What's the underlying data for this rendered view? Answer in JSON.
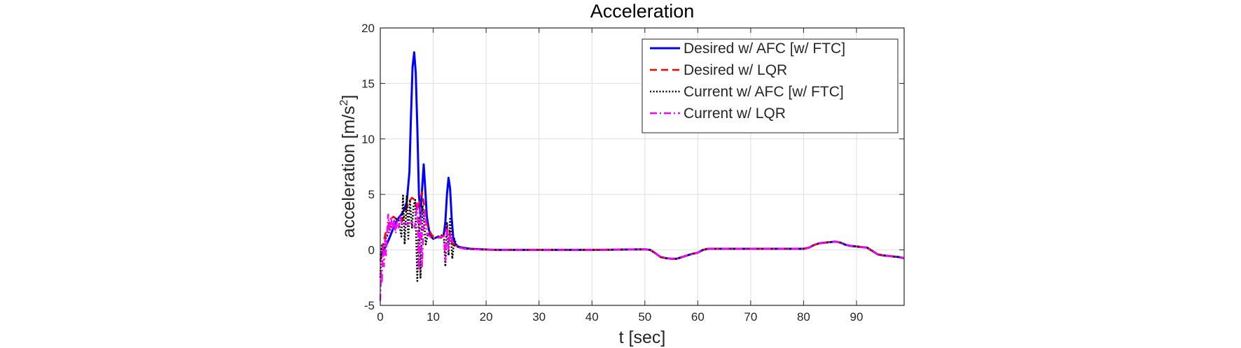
{
  "chart_data": {
    "type": "line",
    "title": "Acceleration",
    "xlabel": "t [sec]",
    "ylabel": {
      "text": "acceleration [m/s",
      "sup": "2",
      "tail": "]"
    },
    "xlim": [
      0,
      99
    ],
    "ylim": [
      -5,
      20
    ],
    "xticks": [
      0,
      10,
      20,
      30,
      40,
      50,
      60,
      70,
      80,
      90
    ],
    "yticks": [
      -5,
      0,
      5,
      10,
      15,
      20
    ],
    "grid": true,
    "legend_position": "top-right",
    "series": [
      {
        "name": "Desired w/ AFC [w/ FTC]",
        "color": "#0000ff",
        "style": "solid",
        "x": [
          0,
          0.5,
          1,
          1.5,
          2,
          2.5,
          3,
          3.5,
          4,
          4.5,
          5,
          5.5,
          5.8,
          6.1,
          6.4,
          6.7,
          7.0,
          7.3,
          7.6,
          7.9,
          8.2,
          8.5,
          8.8,
          9.2,
          9.6,
          10.0,
          10.5,
          11.0,
          11.5,
          12.0,
          12.3,
          12.6,
          12.9,
          13.2,
          13.5,
          13.8,
          14.2,
          14.7,
          15.5,
          17,
          19,
          22,
          30,
          40,
          50,
          51,
          52,
          53,
          54,
          55,
          56,
          57,
          58,
          59,
          60,
          61,
          62,
          63,
          65,
          70,
          75,
          80,
          81,
          82,
          83,
          84,
          85,
          86,
          87,
          88,
          89,
          90,
          91,
          92,
          93,
          94,
          95,
          96,
          97,
          98,
          99
        ],
        "y": [
          -0.5,
          -0.2,
          0.3,
          0.8,
          1.4,
          2.0,
          2.5,
          2.9,
          3.2,
          3.6,
          4.3,
          7.0,
          12.0,
          16.5,
          17.8,
          16.0,
          11.0,
          5.0,
          3.0,
          5.5,
          7.7,
          5.5,
          3.0,
          1.8,
          1.2,
          1.0,
          1.1,
          1.2,
          1.1,
          1.4,
          2.5,
          5.0,
          6.5,
          5.5,
          2.8,
          1.0,
          0.5,
          0.3,
          0.2,
          0.1,
          0.05,
          0.0,
          0.0,
          0.0,
          0.05,
          0.0,
          -0.3,
          -0.65,
          -0.75,
          -0.8,
          -0.8,
          -0.65,
          -0.5,
          -0.35,
          -0.25,
          0.0,
          0.1,
          0.1,
          0.1,
          0.1,
          0.1,
          0.1,
          0.2,
          0.45,
          0.6,
          0.65,
          0.7,
          0.75,
          0.65,
          0.45,
          0.35,
          0.3,
          0.25,
          0.2,
          -0.1,
          -0.4,
          -0.5,
          -0.55,
          -0.6,
          -0.65,
          -0.75
        ]
      },
      {
        "name": "Desired w/ LQR",
        "color": "#ff0000",
        "style": "dashed",
        "x": [
          0,
          0.5,
          1,
          1.5,
          2,
          2.5,
          3,
          3.5,
          4,
          4.5,
          5,
          5.5,
          6,
          6.5,
          7,
          7.5,
          7.9,
          8.3,
          8.7,
          9.2,
          9.8,
          10.5,
          11.5,
          12.3,
          12.7,
          13.0,
          13.3,
          13.7,
          14.2,
          15,
          16,
          18,
          22,
          30,
          40,
          50,
          51,
          52,
          53,
          54,
          55,
          56,
          57,
          58,
          59,
          60,
          61,
          62,
          63,
          65,
          70,
          75,
          80,
          81,
          82,
          83,
          84,
          85,
          86,
          87,
          88,
          89,
          90,
          91,
          92,
          93,
          94,
          95,
          96,
          97,
          98,
          99
        ],
        "y": [
          -1.0,
          0.5,
          1.5,
          2.2,
          2.8,
          3.0,
          2.8,
          2.6,
          2.6,
          3.0,
          3.8,
          4.4,
          4.7,
          4.5,
          3.5,
          4.5,
          5.2,
          4.0,
          2.5,
          1.8,
          1.3,
          1.1,
          1.1,
          1.5,
          2.2,
          2.0,
          1.0,
          0.5,
          0.3,
          0.2,
          0.1,
          0.05,
          0.0,
          0.0,
          0.0,
          0.05,
          0.0,
          -0.3,
          -0.65,
          -0.75,
          -0.8,
          -0.8,
          -0.65,
          -0.5,
          -0.35,
          -0.25,
          0.0,
          0.1,
          0.1,
          0.1,
          0.1,
          0.1,
          0.1,
          0.2,
          0.45,
          0.6,
          0.65,
          0.7,
          0.75,
          0.65,
          0.45,
          0.35,
          0.3,
          0.25,
          0.2,
          -0.1,
          -0.4,
          -0.5,
          -0.55,
          -0.6,
          -0.65,
          -0.75
        ]
      },
      {
        "name": "Current w/ AFC [w/ FTC]",
        "color": "#000000",
        "style": "dotted",
        "x": [
          0,
          0.3,
          0.6,
          1.0,
          1.5,
          2,
          2.5,
          3,
          3.5,
          4,
          4.3,
          4.6,
          5.0,
          5.3,
          5.6,
          6.0,
          6.3,
          6.6,
          7.0,
          7.3,
          7.6,
          8.0,
          8.3,
          8.6,
          9.0,
          9.5,
          10,
          10.5,
          11,
          11.5,
          12,
          12.3,
          12.6,
          12.9,
          13.2,
          13.6,
          14.0,
          14.5,
          15,
          16,
          18,
          22,
          30,
          40,
          50,
          51,
          52,
          53,
          54,
          55,
          56,
          57,
          58,
          59,
          60,
          61,
          62,
          63,
          65,
          70,
          75,
          80,
          81,
          82,
          83,
          84,
          85,
          86,
          87,
          88,
          89,
          90,
          91,
          92,
          93,
          94,
          95,
          96,
          97,
          98,
          99
        ],
        "y": [
          -2.5,
          0.5,
          0.0,
          1.0,
          1.5,
          2.0,
          2.5,
          2.8,
          2.6,
          1.2,
          4.9,
          0.5,
          4.9,
          1.0,
          4.5,
          2.0,
          4.0,
          4.5,
          -2.8,
          3.0,
          -2.5,
          4.0,
          2.5,
          0.5,
          1.5,
          1.2,
          1.0,
          1.1,
          1.2,
          1.3,
          1.5,
          -1.5,
          2.5,
          -0.5,
          2.8,
          -0.8,
          1.0,
          0.3,
          0.2,
          0.1,
          0.05,
          0.0,
          0.0,
          0.0,
          0.05,
          0.0,
          -0.3,
          -0.65,
          -0.75,
          -0.8,
          -0.8,
          -0.65,
          -0.5,
          -0.35,
          -0.25,
          0.0,
          0.1,
          0.1,
          0.1,
          0.1,
          0.1,
          0.1,
          0.2,
          0.45,
          0.6,
          0.65,
          0.7,
          0.75,
          0.65,
          0.45,
          0.35,
          0.3,
          0.25,
          0.2,
          -0.1,
          -0.4,
          -0.5,
          -0.55,
          -0.6,
          -0.65,
          -0.75
        ]
      },
      {
        "name": "Current w/ LQR",
        "color": "#ff00ff",
        "style": "dashdot",
        "x": [
          0,
          0.15,
          0.3,
          0.5,
          0.7,
          0.9,
          1.1,
          1.3,
          1.5,
          1.7,
          2.0,
          2.3,
          2.6,
          2.9,
          3.2,
          3.5,
          3.8,
          4.1,
          4.5,
          5.0,
          5.5,
          6.0,
          6.5,
          7.0,
          7.3,
          7.6,
          7.9,
          8.2,
          8.5,
          8.8,
          9.2,
          9.6,
          10,
          10.5,
          11,
          11.5,
          12,
          12.3,
          12.6,
          12.9,
          13.2,
          13.6,
          14.0,
          14.5,
          15,
          16,
          18,
          22,
          30,
          40,
          50,
          51,
          52,
          53,
          54,
          55,
          56,
          57,
          58,
          59,
          60,
          61,
          62,
          63,
          65,
          70,
          75,
          80,
          81,
          82,
          83,
          84,
          85,
          86,
          87,
          88,
          89,
          90,
          91,
          92,
          93,
          94,
          95,
          96,
          97,
          98,
          99
        ],
        "y": [
          -4.6,
          -2.0,
          -3.0,
          0.5,
          -1.5,
          1.0,
          -0.5,
          1.8,
          3.2,
          1.5,
          3.0,
          1.8,
          2.8,
          1.5,
          2.7,
          2.0,
          3.0,
          2.2,
          2.5,
          2.3,
          2.4,
          2.6,
          2.0,
          4.3,
          -1.8,
          3.8,
          -1.5,
          2.5,
          3.5,
          1.5,
          1.3,
          1.1,
          1.0,
          1.1,
          1.1,
          1.2,
          1.2,
          -1.0,
          2.2,
          0.0,
          1.5,
          0.8,
          0.5,
          0.3,
          0.2,
          0.1,
          0.05,
          0.0,
          0.0,
          0.0,
          0.05,
          0.0,
          -0.3,
          -0.65,
          -0.75,
          -0.8,
          -0.8,
          -0.65,
          -0.5,
          -0.35,
          -0.25,
          0.0,
          0.1,
          0.1,
          0.1,
          0.1,
          0.1,
          0.1,
          0.2,
          0.45,
          0.6,
          0.65,
          0.7,
          0.75,
          0.65,
          0.45,
          0.35,
          0.3,
          0.25,
          0.2,
          -0.1,
          -0.4,
          -0.5,
          -0.55,
          -0.6,
          -0.65,
          -0.75
        ]
      }
    ]
  }
}
